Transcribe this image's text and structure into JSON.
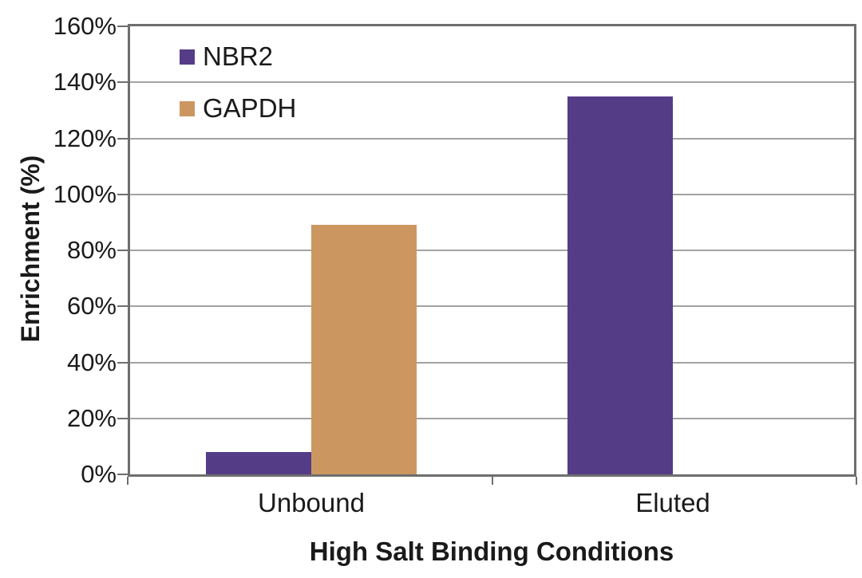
{
  "chart_data": {
    "type": "bar",
    "title": "",
    "xlabel": "High Salt Binding Conditions",
    "ylabel": "Enrichment (%)",
    "categories": [
      "Unbound",
      "Eluted"
    ],
    "series": [
      {
        "name": "NBR2",
        "color": "#553C87",
        "values": [
          8,
          135
        ]
      },
      {
        "name": "GAPDH",
        "color": "#CC9661",
        "values": [
          89,
          0
        ]
      }
    ],
    "ylim": [
      0,
      160
    ],
    "ytick_step": 20,
    "ytick_labels": [
      "0%",
      "20%",
      "40%",
      "60%",
      "80%",
      "100%",
      "120%",
      "140%",
      "160%"
    ],
    "grid": true,
    "legend_position": "top-left",
    "colors": {
      "gridline": "#A3A3A3",
      "axis_border": "#6E6E6E",
      "text": "#1A1A1A",
      "background": "#FFFFFF"
    }
  }
}
